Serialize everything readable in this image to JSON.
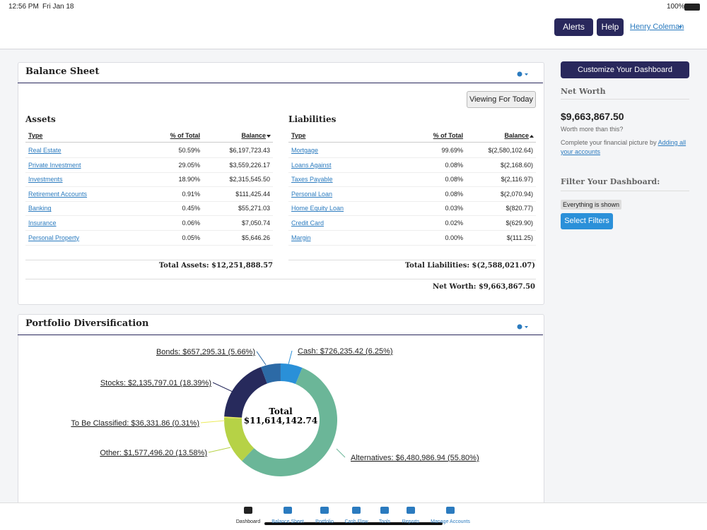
{
  "status_bar": {
    "time": "12:56 PM",
    "date": "Fri Jan 18",
    "battery": "100%"
  },
  "header": {
    "alerts": "Alerts",
    "help": "Help",
    "user": "Henry Coleman"
  },
  "balance_sheet": {
    "title": "Balance Sheet",
    "viewing": "Viewing For Today",
    "assets": {
      "title": "Assets",
      "columns": [
        "Type",
        "% of Total",
        "Balance"
      ],
      "rows": [
        [
          "Real Estate",
          "50.59%",
          "$6,197,723.43"
        ],
        [
          "Private Investment",
          "29.05%",
          "$3,559,226.17"
        ],
        [
          "Investments",
          "18.90%",
          "$2,315,545.50"
        ],
        [
          "Retirement Accounts",
          "0.91%",
          "$111,425.44"
        ],
        [
          "Banking",
          "0.45%",
          "$55,271.03"
        ],
        [
          "Insurance",
          "0.06%",
          "$7,050.74"
        ],
        [
          "Personal Property",
          "0.05%",
          "$5,646.26"
        ]
      ],
      "total": "Total Assets: $12,251,888.57"
    },
    "liabilities": {
      "title": "Liabilities",
      "columns": [
        "Type",
        "% of Total",
        "Balance"
      ],
      "rows": [
        [
          "Mortgage",
          "99.69%",
          "$(2,580,102.64)"
        ],
        [
          "Loans Against",
          "0.08%",
          "$(2,168.60)"
        ],
        [
          "Taxes Payable",
          "0.08%",
          "$(2,116.97)"
        ],
        [
          "Personal Loan",
          "0.08%",
          "$(2,070.94)"
        ],
        [
          "Home Equity Loan",
          "0.03%",
          "$(820.77)"
        ],
        [
          "Credit Card",
          "0.02%",
          "$(629.90)"
        ],
        [
          "Margin",
          "0.00%",
          "$(111.25)"
        ]
      ],
      "total": "Total Liabilities: $(2,588,021.07)"
    },
    "net_worth": "Net Worth: $9,663,867.50"
  },
  "portfolio": {
    "title": "Portfolio Diversification",
    "total_label": "Total",
    "total": "$11,614,142.74",
    "segments": [
      {
        "label": "Cash: $726,235.42 (6.25%)",
        "percent": 6.25,
        "color": "#2a90d8"
      },
      {
        "label": "Alternatives: $6,480,986.94 (55.80%)",
        "percent": 55.8,
        "color": "#6bb698"
      },
      {
        "label": "Other: $1,577,496.20 (13.58%)",
        "percent": 13.58,
        "color": "#b6d246"
      },
      {
        "label": "To Be Classified: $36,331.86 (0.31%)",
        "percent": 0.31,
        "color": "#eceb5a"
      },
      {
        "label": "Stocks: $2,135,797.01 (18.39%)",
        "percent": 18.39,
        "color": "#272a5c"
      },
      {
        "label": "Bonds: $657,295.31 (5.66%)",
        "percent": 5.66,
        "color": "#2c6aa6"
      }
    ]
  },
  "sidebar": {
    "customize": "Customize Your Dashboard",
    "net_worth_title": "Net Worth",
    "net_worth": "$9,663,867.50",
    "worth_more": "Worth more than this?",
    "complete_text": "Complete your financial picture by",
    "complete_link": "Adding all your accounts",
    "filter_title": "Filter Your Dashboard:",
    "filter_status": "Everything is shown",
    "select_filters": "Select Filters"
  },
  "tab_bar": [
    "Dashboard",
    "Balance Sheet",
    "Portfolio",
    "Cash Flow",
    "Tools",
    "Reports",
    "Manage Accounts"
  ]
}
